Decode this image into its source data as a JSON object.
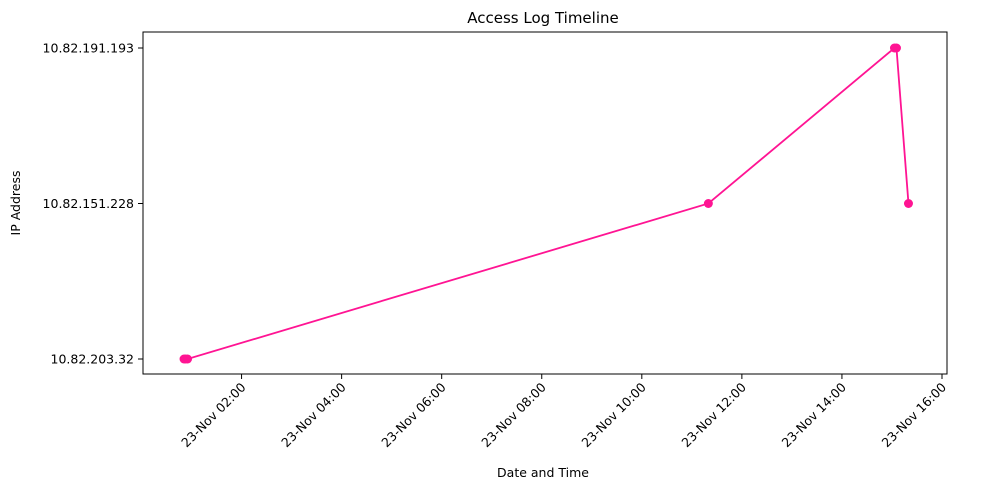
{
  "chart_data": {
    "type": "line",
    "title": "Access Log Timeline",
    "xlabel": "Date and Time",
    "ylabel": "IP Address",
    "x_tick_labels": [
      "23-Nov 02:00",
      "23-Nov 04:00",
      "23-Nov 06:00",
      "23-Nov 08:00",
      "23-Nov 10:00",
      "23-Nov 12:00",
      "23-Nov 14:00",
      "23-Nov 16:00"
    ],
    "x_ticks_hours": [
      2,
      4,
      6,
      8,
      10,
      12,
      14,
      16
    ],
    "y_categories": [
      "10.82.203.32",
      "10.82.151.228",
      "10.82.191.193"
    ],
    "xlim_hours": [
      0.03,
      16.1
    ],
    "color": "#ff1493",
    "grid": false,
    "series": [
      {
        "points": [
          {
            "time": "23-Nov 00:51",
            "hour": 0.85,
            "ip": "10.82.203.32"
          },
          {
            "time": "23-Nov 00:53",
            "hour": 0.88,
            "ip": "10.82.203.32"
          },
          {
            "time": "23-Nov 00:55",
            "hour": 0.92,
            "ip": "10.82.203.32"
          },
          {
            "time": "23-Nov 11:20",
            "hour": 11.33,
            "ip": "10.82.151.228"
          },
          {
            "time": "23-Nov 15:03",
            "hour": 15.05,
            "ip": "10.82.191.193"
          },
          {
            "time": "23-Nov 15:05",
            "hour": 15.09,
            "ip": "10.82.191.193"
          },
          {
            "time": "23-Nov 15:20",
            "hour": 15.33,
            "ip": "10.82.151.228"
          }
        ]
      }
    ]
  }
}
